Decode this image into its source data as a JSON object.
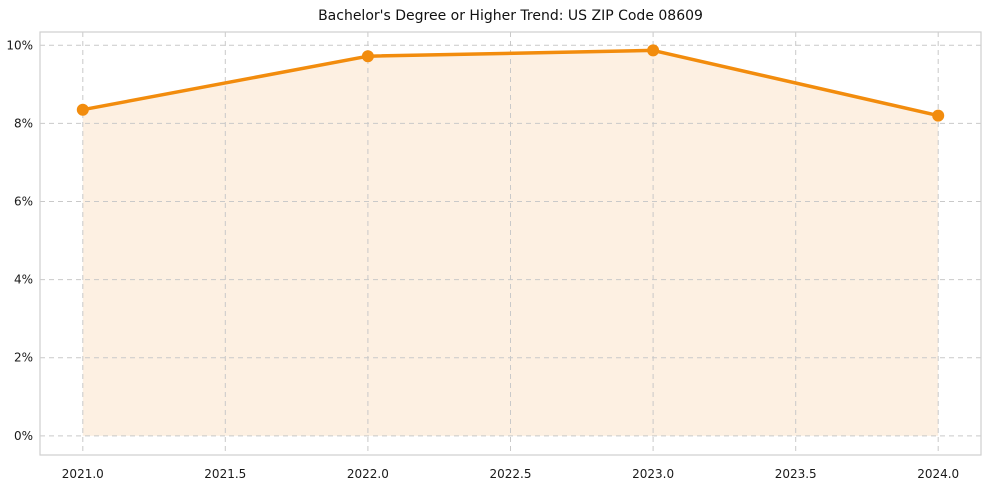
{
  "chart_data": {
    "type": "line",
    "title": "Bachelor's Degree or Higher Trend: US ZIP Code 08609",
    "x": [
      2021,
      2022,
      2023,
      2024
    ],
    "values": [
      8.35,
      9.72,
      9.87,
      8.2
    ],
    "series_name": "Bachelor's Degree or Higher (%)",
    "xlabel": "",
    "ylabel": "",
    "x_ticks": [
      2021.0,
      2021.5,
      2022.0,
      2022.5,
      2023.0,
      2023.5,
      2024.0
    ],
    "x_tick_labels": [
      "2021.0",
      "2021.5",
      "2022.0",
      "2022.5",
      "2023.0",
      "2023.5",
      "2024.0"
    ],
    "y_ticks": [
      0,
      2,
      4,
      6,
      8,
      10
    ],
    "y_tick_labels": [
      "0%",
      "2%",
      "4%",
      "6%",
      "8%",
      "10%"
    ],
    "xlim": [
      2020.85,
      2024.15
    ],
    "ylim": [
      -0.49,
      10.34
    ],
    "grid": true,
    "grid_style": "dashed",
    "legend": false,
    "colors": {
      "line": "#f28c0d",
      "marker": "#f28c0d",
      "area_fill": "#fdf0e2",
      "gridline": "#c9c9c9",
      "frame": "#cfcfcf",
      "tick_text": "#1a1a1a",
      "title_text": "#111111",
      "background": "#ffffff"
    }
  }
}
